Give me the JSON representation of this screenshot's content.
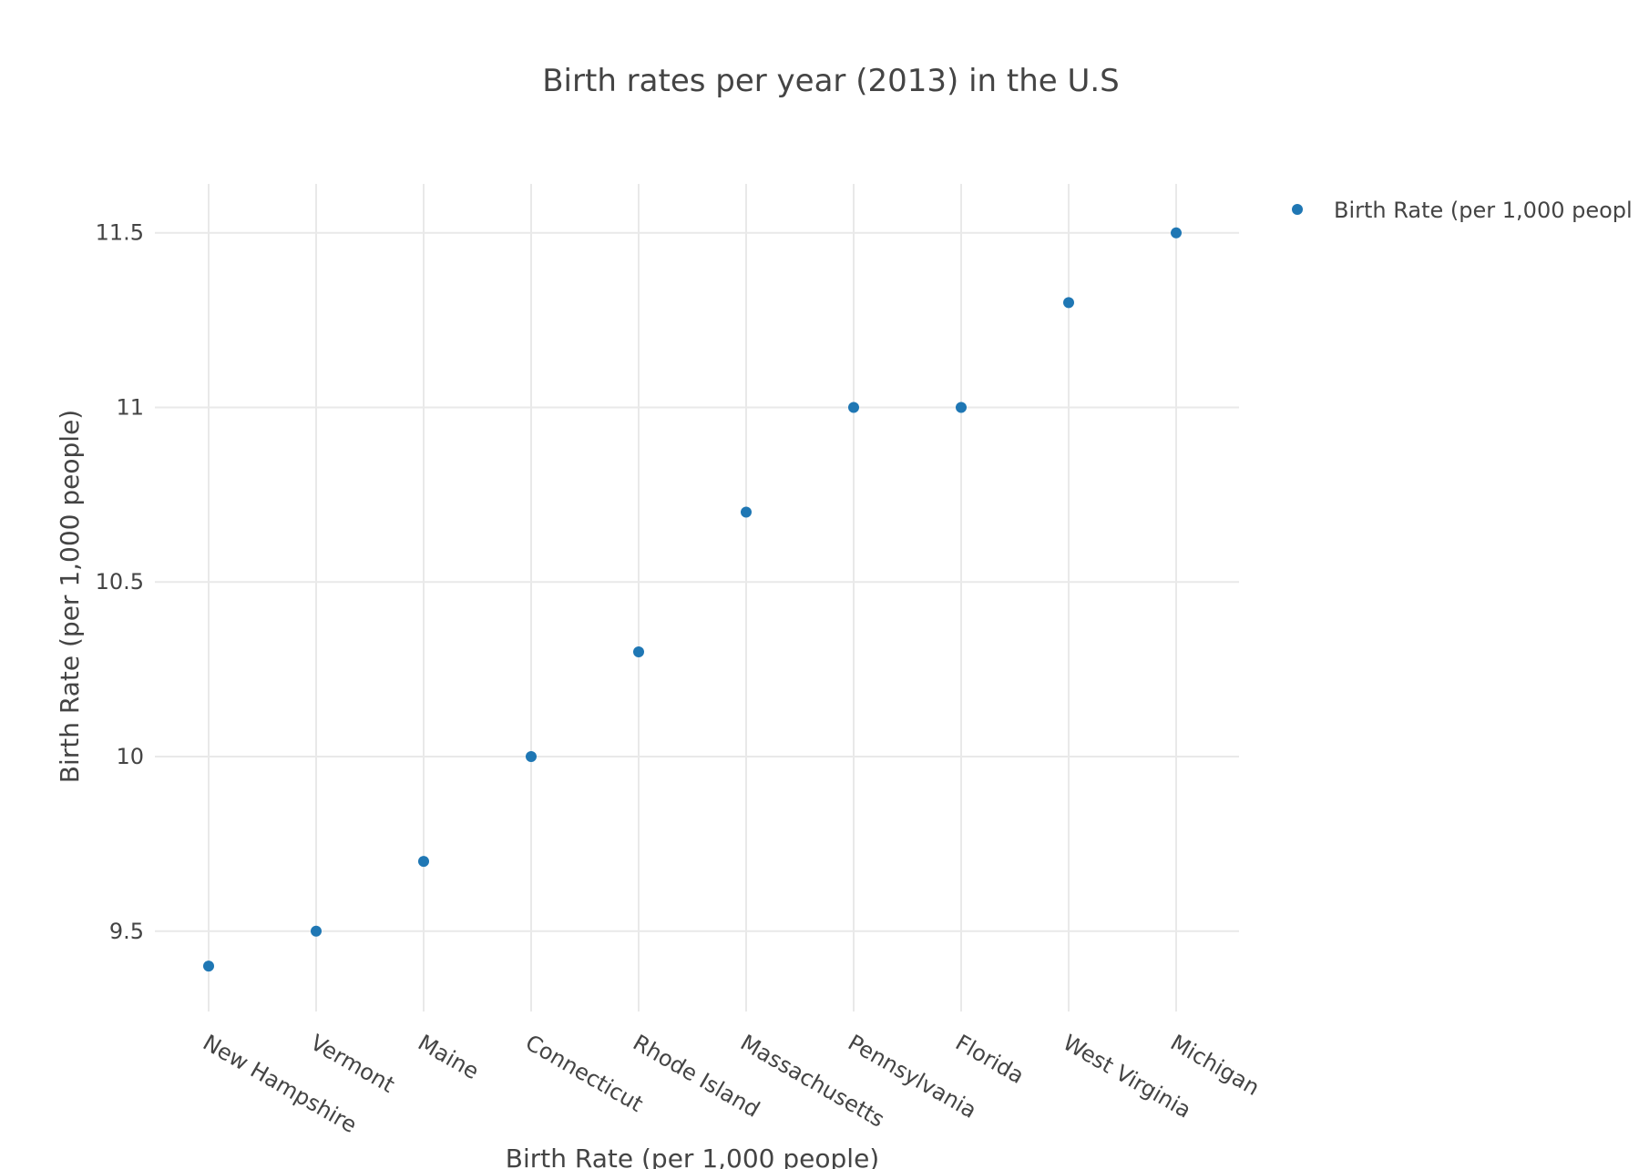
{
  "chart_data": {
    "type": "scatter",
    "title": "Birth rates per year (2013) in the U.S",
    "xlabel": "Birth Rate (per 1,000 people)",
    "ylabel": "Birth Rate (per 1,000 people)",
    "categories": [
      "New Hampshire",
      "Vermont",
      "Maine",
      "Connecticut",
      "Rhode Island",
      "Massachusetts",
      "Pennsylvania",
      "Florida",
      "West Virginia",
      "Michigan"
    ],
    "series": [
      {
        "name": "Birth Rate (per 1,000 peopl",
        "values": [
          9.4,
          9.5,
          9.7,
          10.0,
          10.3,
          10.7,
          11.0,
          11.0,
          11.3,
          11.5
        ],
        "color": "#1f77b4"
      }
    ],
    "y_ticks": [
      9.5,
      10,
      10.5,
      11,
      11.5
    ],
    "y_tick_labels": [
      "9.5",
      "10",
      "10.5",
      "11",
      "11.5"
    ],
    "ylim": [
      9.27,
      11.64
    ],
    "grid": true,
    "legend_position": "top-right",
    "x_tick_rotation": "slanted"
  }
}
